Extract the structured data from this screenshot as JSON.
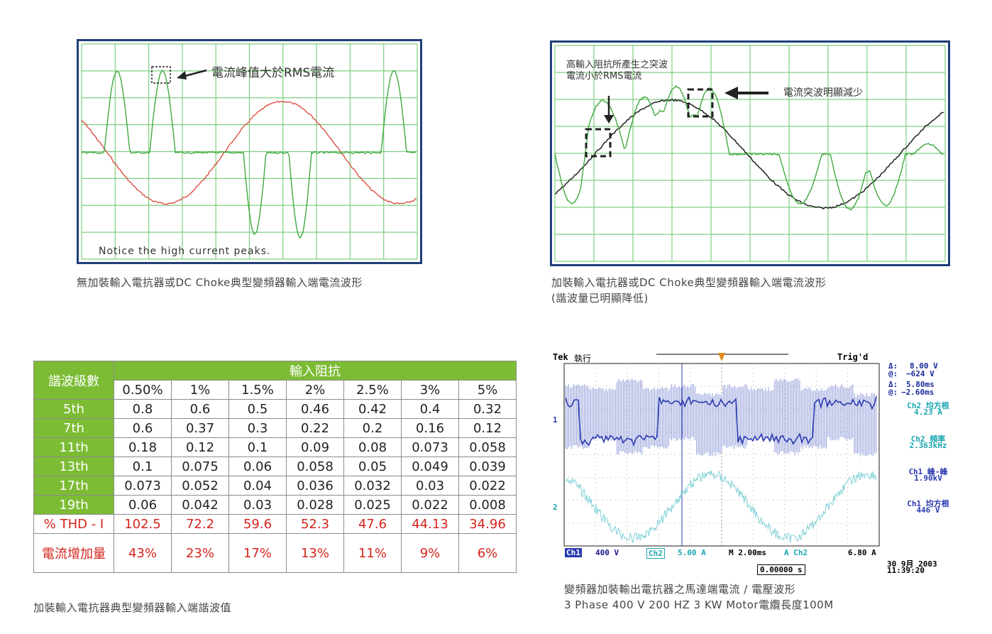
{
  "panel1": {
    "annotation": "電流峰值大於RMS電流",
    "notice": "Notice the high current peaks.",
    "caption": "無加裝輸入電抗器或DC Choke典型變頻器輸入端電流波形"
  },
  "panel2": {
    "annotation_line1": "高輸入阻抗所產生之突波",
    "annotation_line2": "電流小於RMS電流",
    "annotation_right": "電流突波明顯減少",
    "caption_line1": "加裝輸入電抗器或DC Choke典型變頻器輸入端電流波形",
    "caption_line2": "(諧波量已明顯降低)"
  },
  "table": {
    "header_left": "諧波級數",
    "header_group": "輸入阻抗",
    "impedances": [
      "0.50%",
      "1%",
      "1.5%",
      "2%",
      "2.5%",
      "3%",
      "5%"
    ],
    "rows": [
      {
        "label": "5th",
        "values": [
          "0.8",
          "0.6",
          "0.5",
          "0.46",
          "0.42",
          "0.4",
          "0.32"
        ]
      },
      {
        "label": "7th",
        "values": [
          "0.6",
          "0.37",
          "0.3",
          "0.22",
          "0.2",
          "0.16",
          "0.12"
        ]
      },
      {
        "label": "11th",
        "values": [
          "0.18",
          "0.12",
          "0.1",
          "0.09",
          "0.08",
          "0.073",
          "0.058"
        ]
      },
      {
        "label": "13th",
        "values": [
          "0.1",
          "0.075",
          "0.06",
          "0.058",
          "0.05",
          "0.049",
          "0.039"
        ]
      },
      {
        "label": "17th",
        "values": [
          "0.073",
          "0.052",
          "0.04",
          "0.036",
          "0.032",
          "0.03",
          "0.022"
        ]
      },
      {
        "label": "19th",
        "values": [
          "0.06",
          "0.042",
          "0.03",
          "0.028",
          "0.025",
          "0.022",
          "0.008"
        ]
      }
    ],
    "thd_label": "% THD - I",
    "thd_values": [
      "102.5",
      "72.2",
      "59.6",
      "52.3",
      "47.6",
      "44.13",
      "34.96"
    ],
    "inc_label": "電流增加量",
    "inc_values": [
      "43%",
      "23%",
      "17%",
      "13%",
      "11%",
      "9%",
      "6%"
    ],
    "caption": "加裝輸入電抗器典型變頻器輸入端諧波值",
    "colors": {
      "header_green": "#7cbc34",
      "red": "#d4241c"
    }
  },
  "tek": {
    "brand": "Tek",
    "status": "執行",
    "trig": "Trig'd",
    "delta_v_label": "Δ:",
    "delta_v": "8.00 V",
    "at_v_label": "@:",
    "at_v": "−624 V",
    "delta_t_label": "Δ:",
    "delta_t": "5.80ms",
    "at_t_label": "@:",
    "at_t": "−2.60ms",
    "m1_label": "Ch2 均方根",
    "m1_value": "4.23 A",
    "m2_label": "Ch2 頻率",
    "m2_value": "2.363kHz",
    "m3_label": "Ch1 峰-峰",
    "m3_value": "1.90kV",
    "m4_label": "Ch1 均方根",
    "m4_value": "446 V",
    "ch1": "Ch1",
    "ch1_scale": "400 V",
    "ch2": "Ch2",
    "ch2_scale": "5.00 A",
    "timebase": "M 2.00ms",
    "trig_src": "A  Ch2",
    "trig_level": "6.80 A",
    "position": "0.00000 s",
    "date": "30 9月  2003",
    "time": "11:39:20",
    "caption_line1": "變頻器加裝輸出電抗器之馬達端電流 / 電壓波形",
    "caption_line2": "3 Phase 400 V 200 HZ 3 KW Motor電纜長度100M"
  }
}
